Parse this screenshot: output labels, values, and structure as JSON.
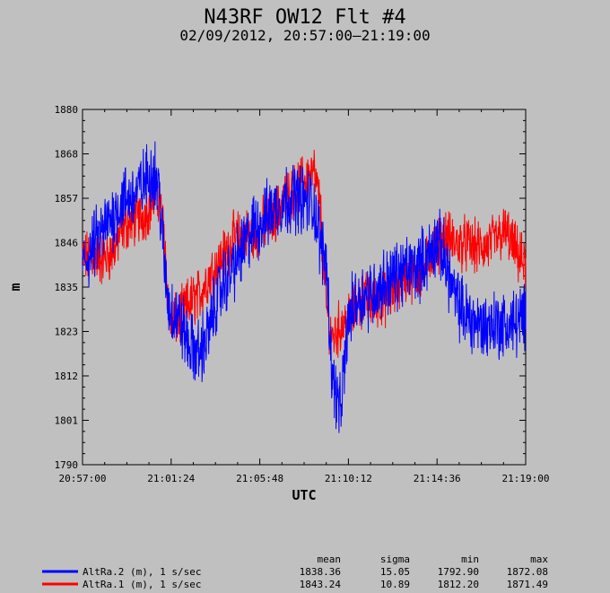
{
  "colors": {
    "background": "#c0c0c0",
    "plot_bg": "#c0c0c0",
    "series_blue": "#0000ff",
    "series_red": "#ff0000"
  },
  "chart_data": {
    "type": "line",
    "title": "N43RF OW12 Flt #4",
    "subtitle": "02/09/2012, 20:57:00–21:19:00",
    "xlabel": "UTC",
    "ylabel": "m",
    "xlim": [
      "20:57:00",
      "21:19:00"
    ],
    "ylim": [
      1790,
      1880
    ],
    "x_ticks": [
      "20:57:00",
      "21:01:24",
      "21:05:48",
      "21:10:12",
      "21:14:36",
      "21:19:00"
    ],
    "y_ticks": [
      "1880",
      "1868",
      "1857",
      "1846",
      "1835",
      "1823",
      "1812",
      "1801",
      "1790"
    ],
    "grid": false,
    "legend_placement": "bottom",
    "legend_headers": {
      "mean": "mean",
      "sigma": "sigma",
      "min": "min",
      "max": "max"
    },
    "series": [
      {
        "name": "AltRa.2 (m), 1 s/sec",
        "color": "#0000ff",
        "stats": {
          "mean": "1838.36",
          "sigma": "15.05",
          "min": "1792.90",
          "max": "1872.08"
        },
        "x_minutes": [
          0,
          0.5,
          1,
          1.5,
          2,
          2.5,
          3,
          3.5,
          3.8,
          4.1,
          4.3,
          4.8,
          5.3,
          5.8,
          6.3,
          6.6,
          7,
          7.5,
          8,
          8.5,
          9,
          9.5,
          10,
          10.5,
          11,
          11.5,
          11.8,
          12.1,
          12.4,
          12.8,
          13.2,
          13.6,
          14,
          14.5,
          15,
          15.5,
          16,
          16.5,
          16.8,
          17,
          17.3,
          17.6,
          18,
          18.5,
          19,
          19.5,
          20,
          20.5,
          21,
          21.5,
          22
        ],
        "values": [
          1840,
          1845,
          1849,
          1853,
          1857,
          1858,
          1861,
          1865,
          1860,
          1838,
          1830,
          1827,
          1820,
          1818,
          1824,
          1831,
          1836,
          1840,
          1845,
          1850,
          1852,
          1855,
          1857,
          1858,
          1857,
          1856,
          1846,
          1842,
          1812,
          1803,
          1827,
          1832,
          1833,
          1834,
          1836,
          1838,
          1839,
          1840,
          1841,
          1842,
          1844,
          1847,
          1842,
          1832,
          1828,
          1826,
          1825,
          1826,
          1825,
          1826,
          1827
        ]
      },
      {
        "name": "AltRa.1 (m), 1 s/sec",
        "color": "#ff0000",
        "stats": {
          "mean": "1843.24",
          "sigma": "10.89",
          "min": "1812.20",
          "max": "1871.49"
        },
        "x_minutes": [
          0,
          0.5,
          1,
          1.5,
          2,
          2.5,
          3,
          3.5,
          3.8,
          4.1,
          4.3,
          4.8,
          5.3,
          5.8,
          6.3,
          6.6,
          7,
          7.5,
          8,
          8.5,
          9,
          9.5,
          10,
          10.5,
          11,
          11.5,
          11.8,
          12.1,
          12.4,
          12.8,
          13.2,
          13.6,
          14,
          14.5,
          15,
          15.5,
          16,
          16.5,
          16.8,
          17,
          17.3,
          17.6,
          18,
          18.5,
          19,
          19.5,
          20,
          20.5,
          21,
          21.5,
          22
        ],
        "values": [
          1842,
          1843,
          1842,
          1844,
          1850,
          1852,
          1853,
          1857,
          1858,
          1846,
          1826,
          1827,
          1831,
          1833,
          1838,
          1840,
          1843,
          1847,
          1848,
          1848,
          1851,
          1853,
          1857,
          1859,
          1862,
          1864,
          1855,
          1830,
          1822,
          1825,
          1827,
          1830,
          1832,
          1831,
          1832,
          1834,
          1838,
          1838,
          1839,
          1840,
          1844,
          1845,
          1848,
          1846,
          1846,
          1845,
          1845,
          1847,
          1849,
          1844,
          1840
        ]
      }
    ]
  }
}
